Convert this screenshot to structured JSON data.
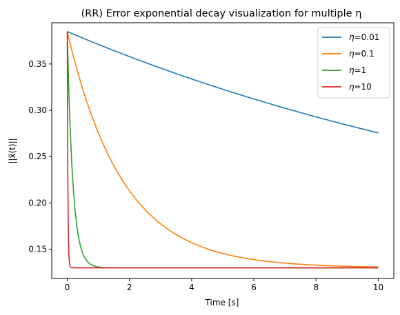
{
  "chart_data": {
    "type": "line",
    "title": "(RR) Error exponential decay visualization for multiple η",
    "xlabel": "Time [s]",
    "ylabel": "||x̃(t)||",
    "xlim": [
      -0.5,
      10.5
    ],
    "ylim": [
      0.1185,
      0.3945
    ],
    "x_ticks": [
      0,
      2,
      4,
      6,
      8,
      10
    ],
    "y_ticks": [
      0.15,
      0.2,
      0.25,
      0.3,
      0.35
    ],
    "x_tick_labels": [
      "0",
      "2",
      "4",
      "6",
      "8",
      "10"
    ],
    "y_tick_labels": [
      "0.15",
      "0.20",
      "0.25",
      "0.30",
      "0.35"
    ],
    "grid": false,
    "legend_position": "top-right",
    "model": {
      "kind": "exponential_decay",
      "initial": 0.385,
      "asymptote": 0.13,
      "t_start": 0,
      "t_end": 10
    },
    "series": [
      {
        "name": "η=0.01",
        "label_prefix": "η",
        "label_value": "=0.01",
        "eta": 0.01,
        "color": "#1f77b4"
      },
      {
        "name": "η=0.1",
        "label_prefix": "η",
        "label_value": "=0.1",
        "eta": 0.1,
        "color": "#ff7f0e"
      },
      {
        "name": "η=1",
        "label_prefix": "η",
        "label_value": "=1",
        "eta": 1,
        "color": "#2ca02c"
      },
      {
        "name": "η=10",
        "label_prefix": "η",
        "label_value": "=10",
        "eta": 10,
        "color": "#d62728"
      }
    ]
  }
}
